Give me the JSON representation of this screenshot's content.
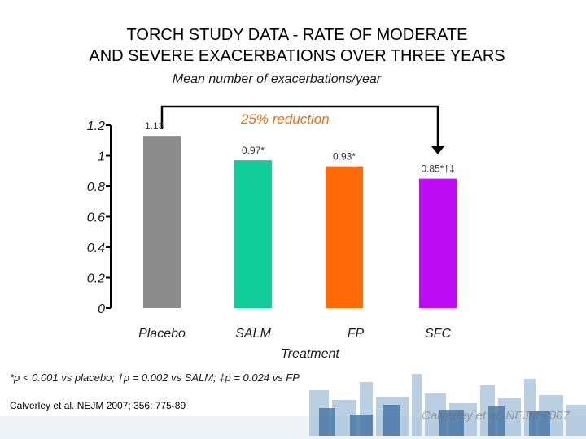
{
  "title": {
    "line1": "TORCH STUDY DATA - RATE OF MODERATE",
    "line2": "AND SEVERE EXACERBATIONS OVER THREE YEARS"
  },
  "annotation": {
    "reduction": "25% reduction"
  },
  "footnote": "*p < 0.001 vs placebo; †p = 0.002 vs SALM; ‡p = 0.024 vs FP",
  "citation": "Calverley et al. NEJM 2007; 356: 775-89",
  "watermark": "Calverley et al. NEJM 2007",
  "colors": {
    "placebo": "#8c8c8c",
    "salm": "#12cc9a",
    "fp": "#ff6a08",
    "sfc": "#bb0cf2",
    "axis": "#000000",
    "bracket": "#000000",
    "reduction": "#f26d0c"
  },
  "chart_data": {
    "type": "bar",
    "title": "TORCH STUDY DATA - RATE OF MODERATE AND SEVERE EXACERBATIONS OVER THREE YEARS",
    "ylabel": "Mean number of exacerbations/year",
    "xlabel": "Treatment",
    "ylim": [
      0,
      1.2
    ],
    "yticks": [
      "0",
      "0.2",
      "0.4",
      "0.6",
      "0.8",
      "1",
      "1.2"
    ],
    "categories": [
      "Placebo",
      "SALM",
      "FP",
      "SFC"
    ],
    "values": [
      1.13,
      0.97,
      0.93,
      0.85
    ],
    "value_labels": [
      "1.13",
      "0.97*",
      "0.93*",
      "0.85*†‡"
    ],
    "annotation": "25% reduction (Placebo to SFC)"
  }
}
